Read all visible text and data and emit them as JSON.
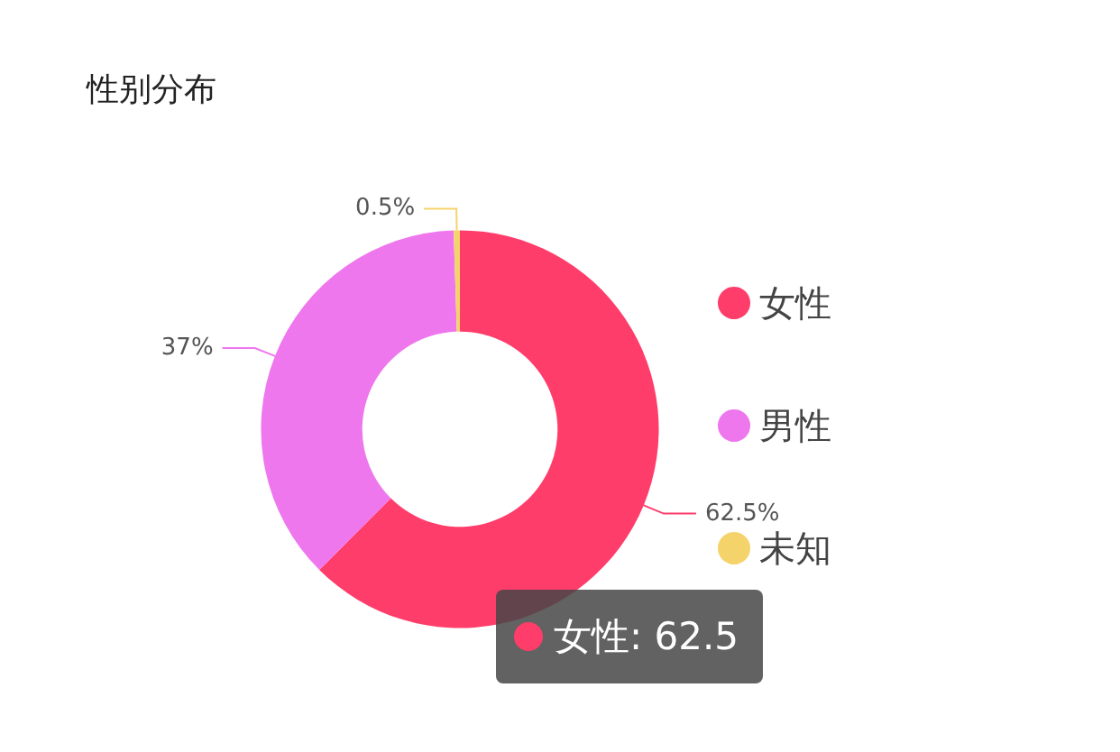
{
  "chart_data": {
    "type": "donut",
    "title": "性别分布",
    "categories": [
      "女性",
      "男性",
      "未知"
    ],
    "values": [
      62.5,
      37,
      0.5
    ],
    "colors": [
      "#ff3d6b",
      "#ee77ee",
      "#f5d36b"
    ],
    "value_labels": [
      "62.5%",
      "37%",
      "0.5%"
    ],
    "legend": "right",
    "annotations": [
      "女性: 62.5"
    ]
  }
}
